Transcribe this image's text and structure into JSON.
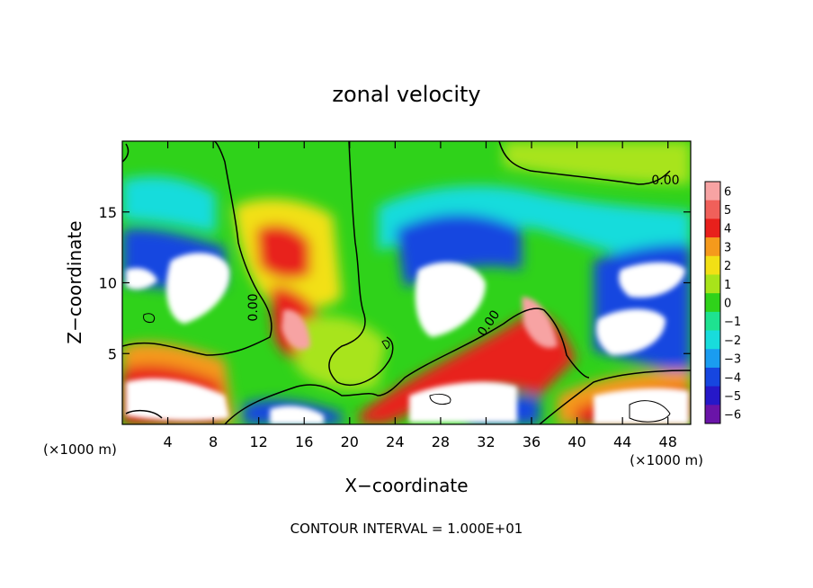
{
  "chart_data": {
    "type": "heatmap",
    "title": "zonal velocity",
    "xlabel": "X−coordinate",
    "ylabel": "Z−coordinate",
    "x_unit": "(×1000 m)",
    "y_unit": "(×1000 m)",
    "xlim": [
      0,
      50
    ],
    "ylim": [
      0,
      20
    ],
    "x_ticks": [
      4,
      8,
      12,
      16,
      20,
      24,
      28,
      32,
      36,
      40,
      44,
      48
    ],
    "y_ticks": [
      5,
      10,
      15
    ],
    "colorbar": {
      "levels": [
        6,
        5,
        4,
        3,
        2,
        1,
        0,
        -1,
        -2,
        -3,
        -4,
        -5,
        -6
      ],
      "labels": [
        "6",
        "5",
        "4",
        "3",
        "2",
        "1",
        "0",
        "−1",
        "−2",
        "−3",
        "−4",
        "−5",
        "−6"
      ],
      "colors": [
        "#f7a3a3",
        "#f0605a",
        "#e8201c",
        "#f59a1c",
        "#f2e015",
        "#a8e41a",
        "#2fd21a",
        "#1ee290",
        "#18dcdc",
        "#1a9cf0",
        "#1646e0",
        "#2618c8",
        "#6a14a8"
      ]
    },
    "contour_labels": [
      "0.00",
      "0.00",
      "0.00"
    ],
    "footer": "CONTOUR INTERVAL = 1.000E+01"
  }
}
